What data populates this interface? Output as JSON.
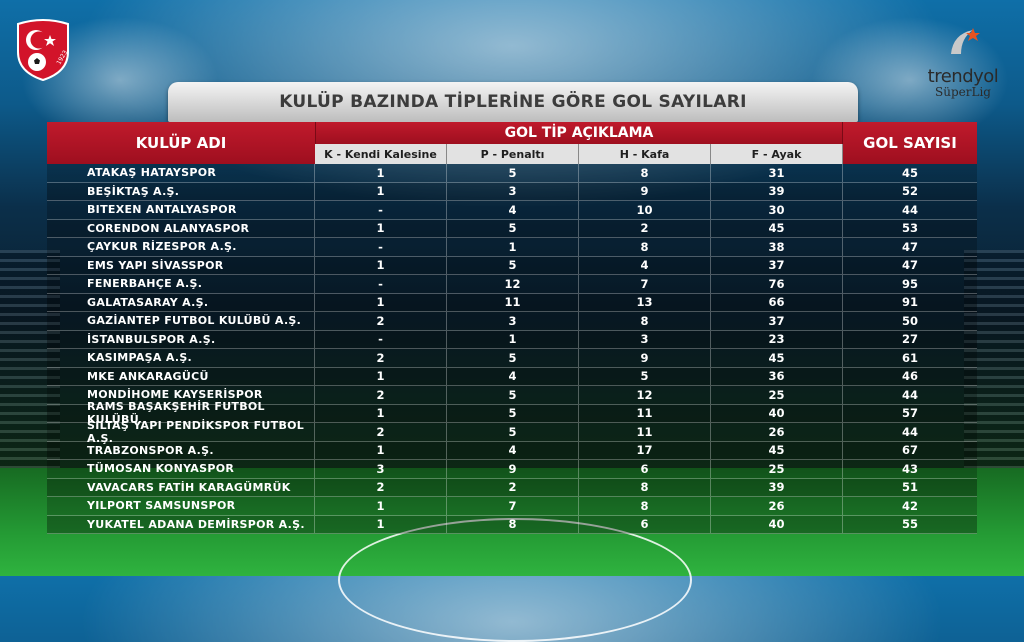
{
  "title": "KULÜP BAZINDA TİPLERİNE GÖRE GOL SAYILARI",
  "brand": {
    "name": "trendyol",
    "sub": "SüperLig"
  },
  "tff_logo_text": "1923",
  "colors": {
    "header_red": "#b0162a",
    "subheader_bg": "#e2e2e2",
    "title_bg": "#d6d6d6"
  },
  "table": {
    "club_header": "KULÜP ADI",
    "group_header": "GOL TİP AÇIKLAMA",
    "total_header": "GOL SAYISI",
    "subheaders": [
      "K - Kendi Kalesine",
      "P - Penaltı",
      "H - Kafa",
      "F - Ayak"
    ],
    "rows": [
      {
        "club": "ATAKAŞ HATAYSPOR",
        "k": "1",
        "p": "5",
        "h": "8",
        "f": "31",
        "total": "45"
      },
      {
        "club": "BEŞİKTAŞ A.Ş.",
        "k": "1",
        "p": "3",
        "h": "9",
        "f": "39",
        "total": "52"
      },
      {
        "club": "BITEXEN ANTALYASPOR",
        "k": "-",
        "p": "4",
        "h": "10",
        "f": "30",
        "total": "44"
      },
      {
        "club": "CORENDON ALANYASPOR",
        "k": "1",
        "p": "5",
        "h": "2",
        "f": "45",
        "total": "53"
      },
      {
        "club": "ÇAYKUR RİZESPOR A.Ş.",
        "k": "-",
        "p": "1",
        "h": "8",
        "f": "38",
        "total": "47"
      },
      {
        "club": "EMS YAPI SİVASSPOR",
        "k": "1",
        "p": "5",
        "h": "4",
        "f": "37",
        "total": "47"
      },
      {
        "club": "FENERBAHÇE A.Ş.",
        "k": "-",
        "p": "12",
        "h": "7",
        "f": "76",
        "total": "95"
      },
      {
        "club": "GALATASARAY A.Ş.",
        "k": "1",
        "p": "11",
        "h": "13",
        "f": "66",
        "total": "91"
      },
      {
        "club": "GAZİANTEP FUTBOL KULÜBÜ A.Ş.",
        "k": "2",
        "p": "3",
        "h": "8",
        "f": "37",
        "total": "50"
      },
      {
        "club": "İSTANBULSPOR A.Ş.",
        "k": "-",
        "p": "1",
        "h": "3",
        "f": "23",
        "total": "27"
      },
      {
        "club": "KASIMPAŞA A.Ş.",
        "k": "2",
        "p": "5",
        "h": "9",
        "f": "45",
        "total": "61"
      },
      {
        "club": "MKE ANKARAGÜCÜ",
        "k": "1",
        "p": "4",
        "h": "5",
        "f": "36",
        "total": "46"
      },
      {
        "club": "MONDİHOME KAYSERİSPOR",
        "k": "2",
        "p": "5",
        "h": "12",
        "f": "25",
        "total": "44"
      },
      {
        "club": "RAMS BAŞAKŞEHİR FUTBOL KULÜBÜ",
        "k": "1",
        "p": "5",
        "h": "11",
        "f": "40",
        "total": "57"
      },
      {
        "club": "SİLTAŞ YAPI PENDİKSPOR FUTBOL A.Ş.",
        "k": "2",
        "p": "5",
        "h": "11",
        "f": "26",
        "total": "44"
      },
      {
        "club": "TRABZONSPOR A.Ş.",
        "k": "1",
        "p": "4",
        "h": "17",
        "f": "45",
        "total": "67"
      },
      {
        "club": "TÜMOSAN KONYASPOR",
        "k": "3",
        "p": "9",
        "h": "6",
        "f": "25",
        "total": "43"
      },
      {
        "club": "VAVACARS FATİH KARAGÜMRÜK",
        "k": "2",
        "p": "2",
        "h": "8",
        "f": "39",
        "total": "51"
      },
      {
        "club": "YILPORT SAMSUNSPOR",
        "k": "1",
        "p": "7",
        "h": "8",
        "f": "26",
        "total": "42"
      },
      {
        "club": "YUKATEL ADANA DEMİRSPOR A.Ş.",
        "k": "1",
        "p": "8",
        "h": "6",
        "f": "40",
        "total": "55"
      }
    ]
  }
}
